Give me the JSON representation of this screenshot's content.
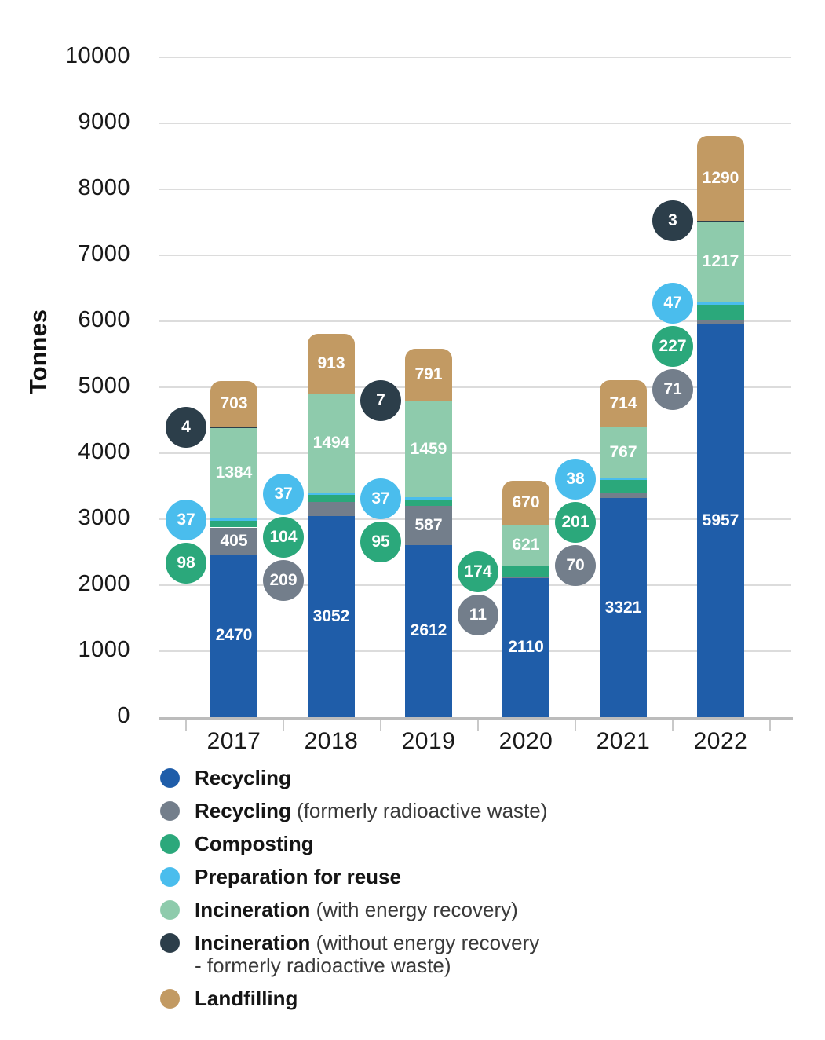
{
  "chart_data": {
    "type": "bar",
    "subtype": "stacked",
    "title": "",
    "xlabel": "",
    "ylabel": "Tonnes",
    "ylim": [
      0,
      10000
    ],
    "yticks": [
      0,
      1000,
      2000,
      3000,
      4000,
      5000,
      6000,
      7000,
      8000,
      9000,
      10000
    ],
    "grid": true,
    "legend_position": "bottom",
    "categories": [
      "2017",
      "2018",
      "2019",
      "2020",
      "2021",
      "2022"
    ],
    "series": [
      {
        "name": "Recycling",
        "color": "#1f5da9",
        "values": [
          2470,
          3052,
          2612,
          2110,
          3321,
          5957
        ]
      },
      {
        "name": "Recycling (formerly radioactive waste)",
        "color": "#737e8b",
        "values": [
          405,
          209,
          587,
          11,
          70,
          71
        ]
      },
      {
        "name": "Composting",
        "color": "#2ba87b",
        "values": [
          98,
          104,
          95,
          174,
          201,
          227
        ]
      },
      {
        "name": "Preparation for reuse",
        "color": "#4abded",
        "values": [
          37,
          37,
          37,
          0,
          38,
          47
        ]
      },
      {
        "name": "Incineration (with energy recovery)",
        "color": "#8ecbac",
        "values": [
          1384,
          1494,
          1459,
          621,
          767,
          1217
        ]
      },
      {
        "name": "Incineration (without energy recovery - formerly radioactive waste)",
        "color": "#2c3e4a",
        "values": [
          4,
          0,
          7,
          0,
          0,
          3
        ]
      },
      {
        "name": "Landfilling",
        "color": "#c29a63",
        "values": [
          703,
          913,
          791,
          670,
          714,
          1290
        ]
      }
    ]
  },
  "legend": {
    "items": [
      {
        "color": "#1f5da9",
        "label_bold": "Recycling",
        "label_rest": "",
        "label_rest2": ""
      },
      {
        "color": "#737e8b",
        "label_bold": "Recycling",
        "label_rest": " (formerly radioactive waste)",
        "label_rest2": ""
      },
      {
        "color": "#2ba87b",
        "label_bold": "Composting",
        "label_rest": "",
        "label_rest2": ""
      },
      {
        "color": "#4abded",
        "label_bold": "Preparation for reuse",
        "label_rest": "",
        "label_rest2": ""
      },
      {
        "color": "#8ecbac",
        "label_bold": "Incineration",
        "label_rest": " (with energy recovery)",
        "label_rest2": ""
      },
      {
        "color": "#2c3e4a",
        "label_bold": "Incineration",
        "label_rest": " (without energy recovery",
        "label_rest2": "- formerly radioactive waste)"
      },
      {
        "color": "#c29a63",
        "label_bold": "Landfilling",
        "label_rest": "",
        "label_rest2": ""
      }
    ]
  }
}
